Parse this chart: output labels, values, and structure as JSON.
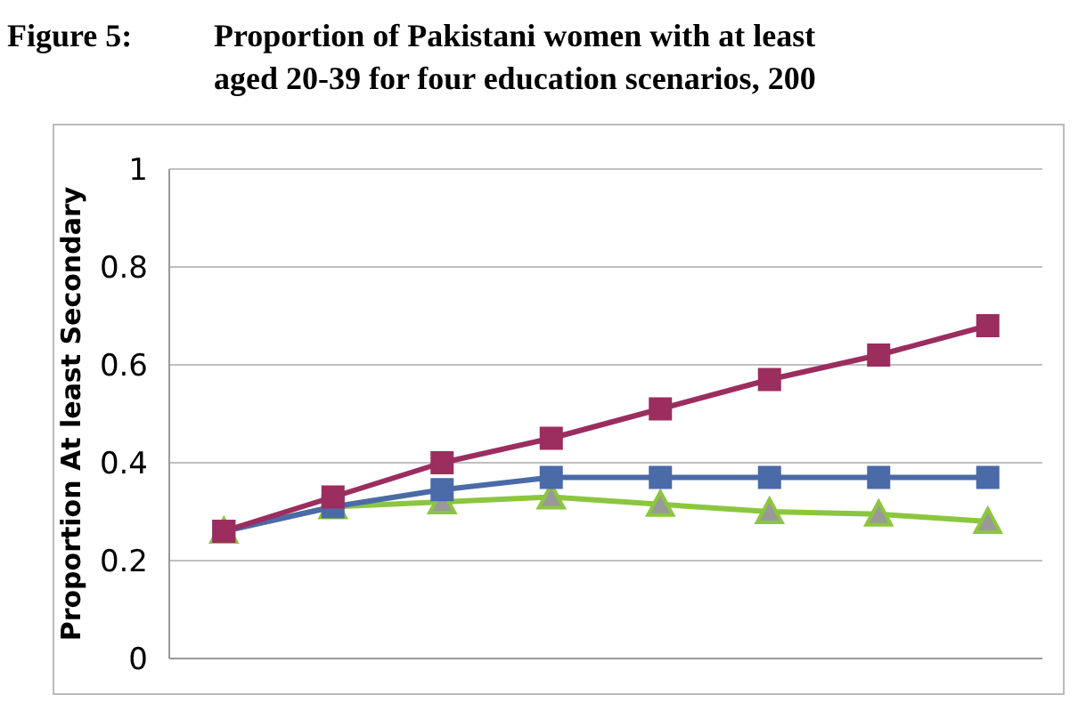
{
  "chart_data": {
    "type": "line",
    "title": "Proportion of Pakistani women with at least",
    "subtitle": "aged 20-39 for four education scenarios, 200",
    "annotations": [
      "Figure 5:"
    ],
    "ylabel": "Proportion At least Secondary",
    "categories": [
      null,
      null,
      null,
      null,
      null,
      null,
      null,
      null
    ],
    "series": [
      {
        "color": "#9b2d5f",
        "marker": "square",
        "values": [
          0.26,
          0.33,
          0.4,
          0.45,
          0.51,
          0.57,
          0.62,
          0.68
        ]
      },
      {
        "color": "#4a6aa8",
        "marker": "square",
        "values": [
          0.26,
          0.31,
          0.345,
          0.37,
          0.37,
          0.37,
          0.37,
          0.37
        ]
      },
      {
        "color": "#8cc63f",
        "marker": "triangle",
        "values": [
          0.26,
          0.31,
          0.32,
          0.33,
          0.315,
          0.3,
          0.295,
          0.28
        ]
      }
    ],
    "ylim": [
      0,
      1
    ],
    "yticks": [
      0,
      0.2,
      0.4,
      0.6,
      0.8,
      1
    ],
    "grid": "y",
    "line_style": "solid"
  }
}
